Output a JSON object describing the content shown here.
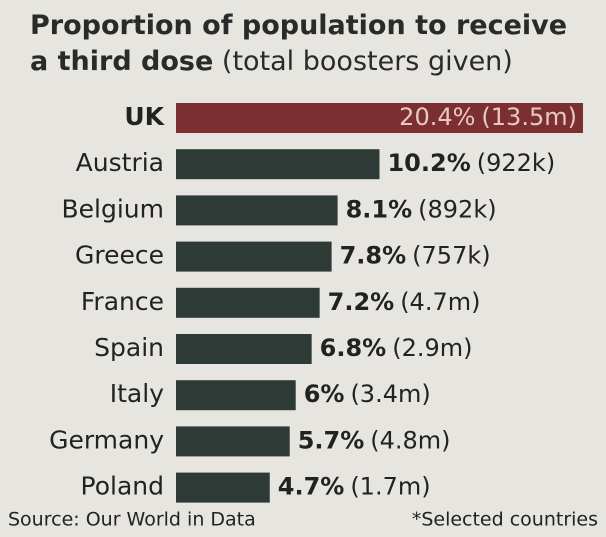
{
  "chart_data": {
    "type": "bar",
    "title": "Proportion of population to receive a third dose",
    "subtitle": "(total boosters given)",
    "categories": [
      "UK",
      "Austria",
      "Belgium",
      "Greece",
      "France",
      "Spain",
      "Italy",
      "Germany",
      "Poland"
    ],
    "values": [
      20.4,
      10.2,
      8.1,
      7.8,
      7.2,
      6.8,
      6,
      5.7,
      4.7
    ],
    "value_labels": [
      "20.4%",
      "10.2%",
      "8.1%",
      "7.8%",
      "7.2%",
      "6.8%",
      "6%",
      "5.7%",
      "4.7%"
    ],
    "boosters": [
      "(13.5m)",
      "(922k)",
      "(892k)",
      "(757k)",
      "(4.7m)",
      "(2.9m)",
      "(3.4m)",
      "(4.8m)",
      "(1.7m)"
    ],
    "colors": [
      "#7b2f31",
      "#2e3a35",
      "#2e3a35",
      "#2e3a35",
      "#2e3a35",
      "#2e3a35",
      "#2e3a35",
      "#2e3a35",
      "#2e3a35"
    ],
    "source": "Source: Our World in Data",
    "note": "*Selected countries"
  }
}
